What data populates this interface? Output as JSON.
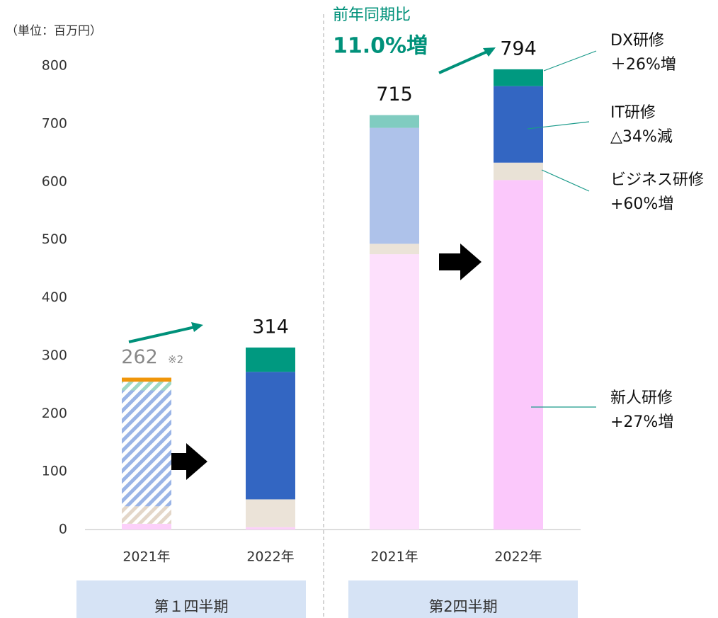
{
  "chart_data": {
    "type": "stacked_bar",
    "unit_label": "（単位：百万円）",
    "categories": [
      "2021年",
      "2022年",
      "2021年",
      "2022年"
    ],
    "groups": [
      "第１四半期",
      "第2四半期"
    ],
    "ylim": [
      0,
      800
    ],
    "yticks": [
      0,
      100,
      200,
      300,
      400,
      500,
      600,
      700,
      800
    ],
    "series": [
      {
        "values": [
          10,
          4,
          475,
          603
        ],
        "colors": [
          "#fcd0fa",
          "#fcd0fa",
          "#fde0fc",
          "#fbc8fb"
        ],
        "hatched": [
          false,
          false,
          false,
          false
        ]
      },
      {
        "values": [
          30,
          48,
          18,
          30
        ],
        "colors": [
          "#e3d6c8",
          "#ebe3d8",
          "#ebe3d8",
          "#e9e2d6"
        ],
        "hatched": [
          true,
          false,
          false,
          false
        ]
      },
      {
        "values": [
          200,
          220,
          200,
          132
        ],
        "colors": [
          "#9ab4e6",
          "#3366c2",
          "#aec2ea",
          "#3366c2"
        ],
        "hatched": [
          true,
          false,
          false,
          false
        ]
      },
      {
        "values": [
          15,
          42,
          22,
          29
        ],
        "colors": [
          "#9fd8c4",
          "#009980",
          "#80ccc0",
          "#009980"
        ],
        "hatched": [
          true,
          false,
          false,
          false
        ]
      },
      {
        "values": [
          7,
          null,
          null,
          null
        ],
        "colors": [
          "#f0960a",
          null,
          null,
          null
        ],
        "hatched": [
          false,
          false,
          false,
          false
        ]
      }
    ],
    "totals": [
      262,
      314,
      715,
      794
    ],
    "total_note": "※2",
    "growth_title": "前年同期比",
    "growth_value": "11.0%増",
    "annotations": [
      {
        "lines": [
          "DX研修",
          "＋26%増"
        ]
      },
      {
        "lines": [
          "IT研修",
          "△34%減"
        ]
      },
      {
        "lines": [
          "ビジネス研修",
          "+60%増"
        ]
      },
      {
        "lines": [
          "新人研修",
          "+27%増"
        ]
      }
    ]
  }
}
